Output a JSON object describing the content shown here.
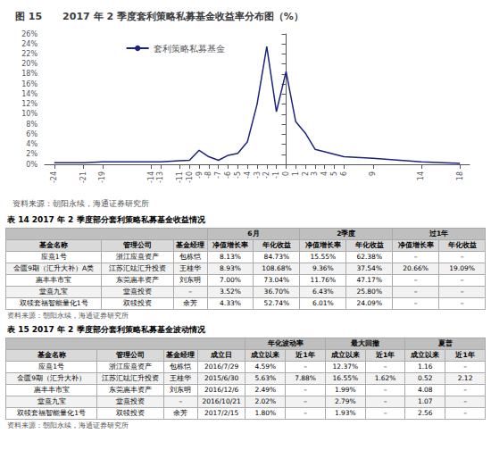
{
  "chart_data": [
    {
      "type": "line",
      "title": "图 15      2017 年 2 季度套利策略私募基金收益率分布图（%）",
      "x": [
        -24,
        -21,
        -19,
        -14,
        -13,
        -11,
        -10,
        -9,
        -8,
        -7,
        -6,
        -5,
        -4,
        -3,
        -2,
        -1,
        0,
        1,
        2,
        3,
        4,
        5,
        6,
        9,
        14,
        18
      ],
      "series": [
        {
          "name": "套利策略私募基金",
          "color": "#1a237e",
          "values": [
            0.3,
            0.3,
            0.5,
            0.5,
            0.5,
            0.7,
            0.8,
            2.8,
            1.5,
            0.8,
            1.8,
            2.2,
            4.5,
            12.0,
            23.5,
            10.5,
            18.5,
            8.5,
            6.2,
            3.0,
            2.5,
            2.0,
            1.5,
            1.2,
            0.5,
            0.2
          ]
        }
      ],
      "xlim": [
        -25,
        19
      ],
      "xticks": [
        -24,
        -21,
        -19,
        -14,
        -13,
        -11,
        -10,
        -9,
        -8,
        -7,
        -6,
        -5,
        -4,
        -3,
        -2,
        -1,
        0,
        1,
        2,
        3,
        4,
        5,
        6,
        9,
        14,
        18
      ],
      "ylim": [
        0,
        26
      ],
      "yticks": [
        {
          "value": 0,
          "label": "0%"
        },
        {
          "value": 2,
          "label": "2%"
        },
        {
          "value": 4,
          "label": "4%"
        },
        {
          "value": 6,
          "label": "6%"
        },
        {
          "value": 8,
          "label": "8%"
        },
        {
          "value": 10,
          "label": "10%"
        },
        {
          "value": 12,
          "label": "12%"
        },
        {
          "value": 14,
          "label": "14%"
        },
        {
          "value": 16,
          "label": "16%"
        },
        {
          "value": 18,
          "label": "18%"
        },
        {
          "value": 20,
          "label": "20%"
        },
        {
          "value": 22,
          "label": "22%"
        },
        {
          "value": 24,
          "label": "24%"
        },
        {
          "value": 26,
          "label": "26%"
        }
      ],
      "grid": false,
      "legend": "upper left",
      "annotations": [
        "资料来源：朝阳永续，海通证券研究所"
      ]
    },
    {
      "type": "table",
      "title": "表 14      2017 年 2 季度部分套利策略私募基金收益情况",
      "column_groups": [
        {
          "label": null,
          "span": 3
        },
        {
          "label": "6月",
          "span": 2
        },
        {
          "label": "2季度",
          "span": 2
        },
        {
          "label": "过1年",
          "span": 2
        }
      ],
      "columns": [
        "基金名称",
        "管理公司",
        "基金经理",
        "净值增长率",
        "年化收益",
        "净值增长率",
        "年化收益",
        "净值增长率",
        "年化收益"
      ],
      "rows": [
        [
          "应熹1号",
          "浙江应熹资产",
          "包栋恺",
          "8.13%",
          "84.73%",
          "15.55%",
          "62.38%",
          "–",
          "–"
        ],
        [
          "金匮9期（汇升大补）A类",
          "江苏汇竑汇升投资",
          "王桂华",
          "8.93%",
          "108.68%",
          "9.36%",
          "37.54%",
          "20.66%",
          "19.09%"
        ],
        [
          "惠丰丰市宝",
          "东莞惠丰资产",
          "刘东明",
          "7.00%",
          "73.04%",
          "11.76%",
          "47.17%",
          "–",
          "–"
        ],
        [
          "堂熹九宝",
          "堂熹投资",
          "–",
          "3.52%",
          "36.70%",
          "6.43%",
          "25.80%",
          "–",
          "–"
        ],
        [
          "双犊套福智能量化1号",
          "双犊投资",
          "余芳",
          "4.33%",
          "52.74%",
          "6.01%",
          "24.09%",
          "–",
          "–"
        ]
      ],
      "annotations": [
        "资料来源：朝阳永续，海通证券研究所"
      ]
    },
    {
      "type": "table",
      "title": "表 15      2017 年 2 季度部分套利策略私募基金波动情况",
      "column_groups": [
        {
          "label": null,
          "span": 4
        },
        {
          "label": "年化波动率",
          "span": 2
        },
        {
          "label": "最大回撤",
          "span": 2
        },
        {
          "label": "夏普",
          "span": 2
        }
      ],
      "columns": [
        "基金名称",
        "管理公司",
        "基金经理",
        "成立日",
        "成立以来",
        "近1年",
        "成立以来",
        "近1年",
        "成立以来",
        "近1年"
      ],
      "rows": [
        [
          "应熹1号",
          "浙江应熹资产",
          "包栋恺",
          "2016/7/29",
          "4.59%",
          "–",
          "12.37%",
          "–",
          "1.16",
          "–"
        ],
        [
          "金匮9期（汇升大补）",
          "江苏汇竑汇升投资",
          "王桂华",
          "2015/6/30",
          "5.63%",
          "7.88%",
          "16.55%",
          "1.62%",
          "0.52",
          "2.12"
        ],
        [
          "惠丰丰市宝",
          "东莞惠丰资产",
          "刘东明",
          "2016/12/6",
          "2.49%",
          "–",
          "1.99%",
          "–",
          "4.08",
          "–"
        ],
        [
          "堂熹九宝",
          "堂熹投资",
          "–",
          "2016/10/21",
          "2.02%",
          "–",
          "2.79%",
          "–",
          "1.07",
          "–"
        ],
        [
          "双犊套福智能量化1号",
          "双犊投资",
          "余芳",
          "2017/2/15",
          "1.80%",
          "–",
          "1.93%",
          "–",
          "2.56",
          "–"
        ]
      ],
      "annotations": [
        "资料来源：朝阳永续，海通证券研究所"
      ]
    }
  ]
}
